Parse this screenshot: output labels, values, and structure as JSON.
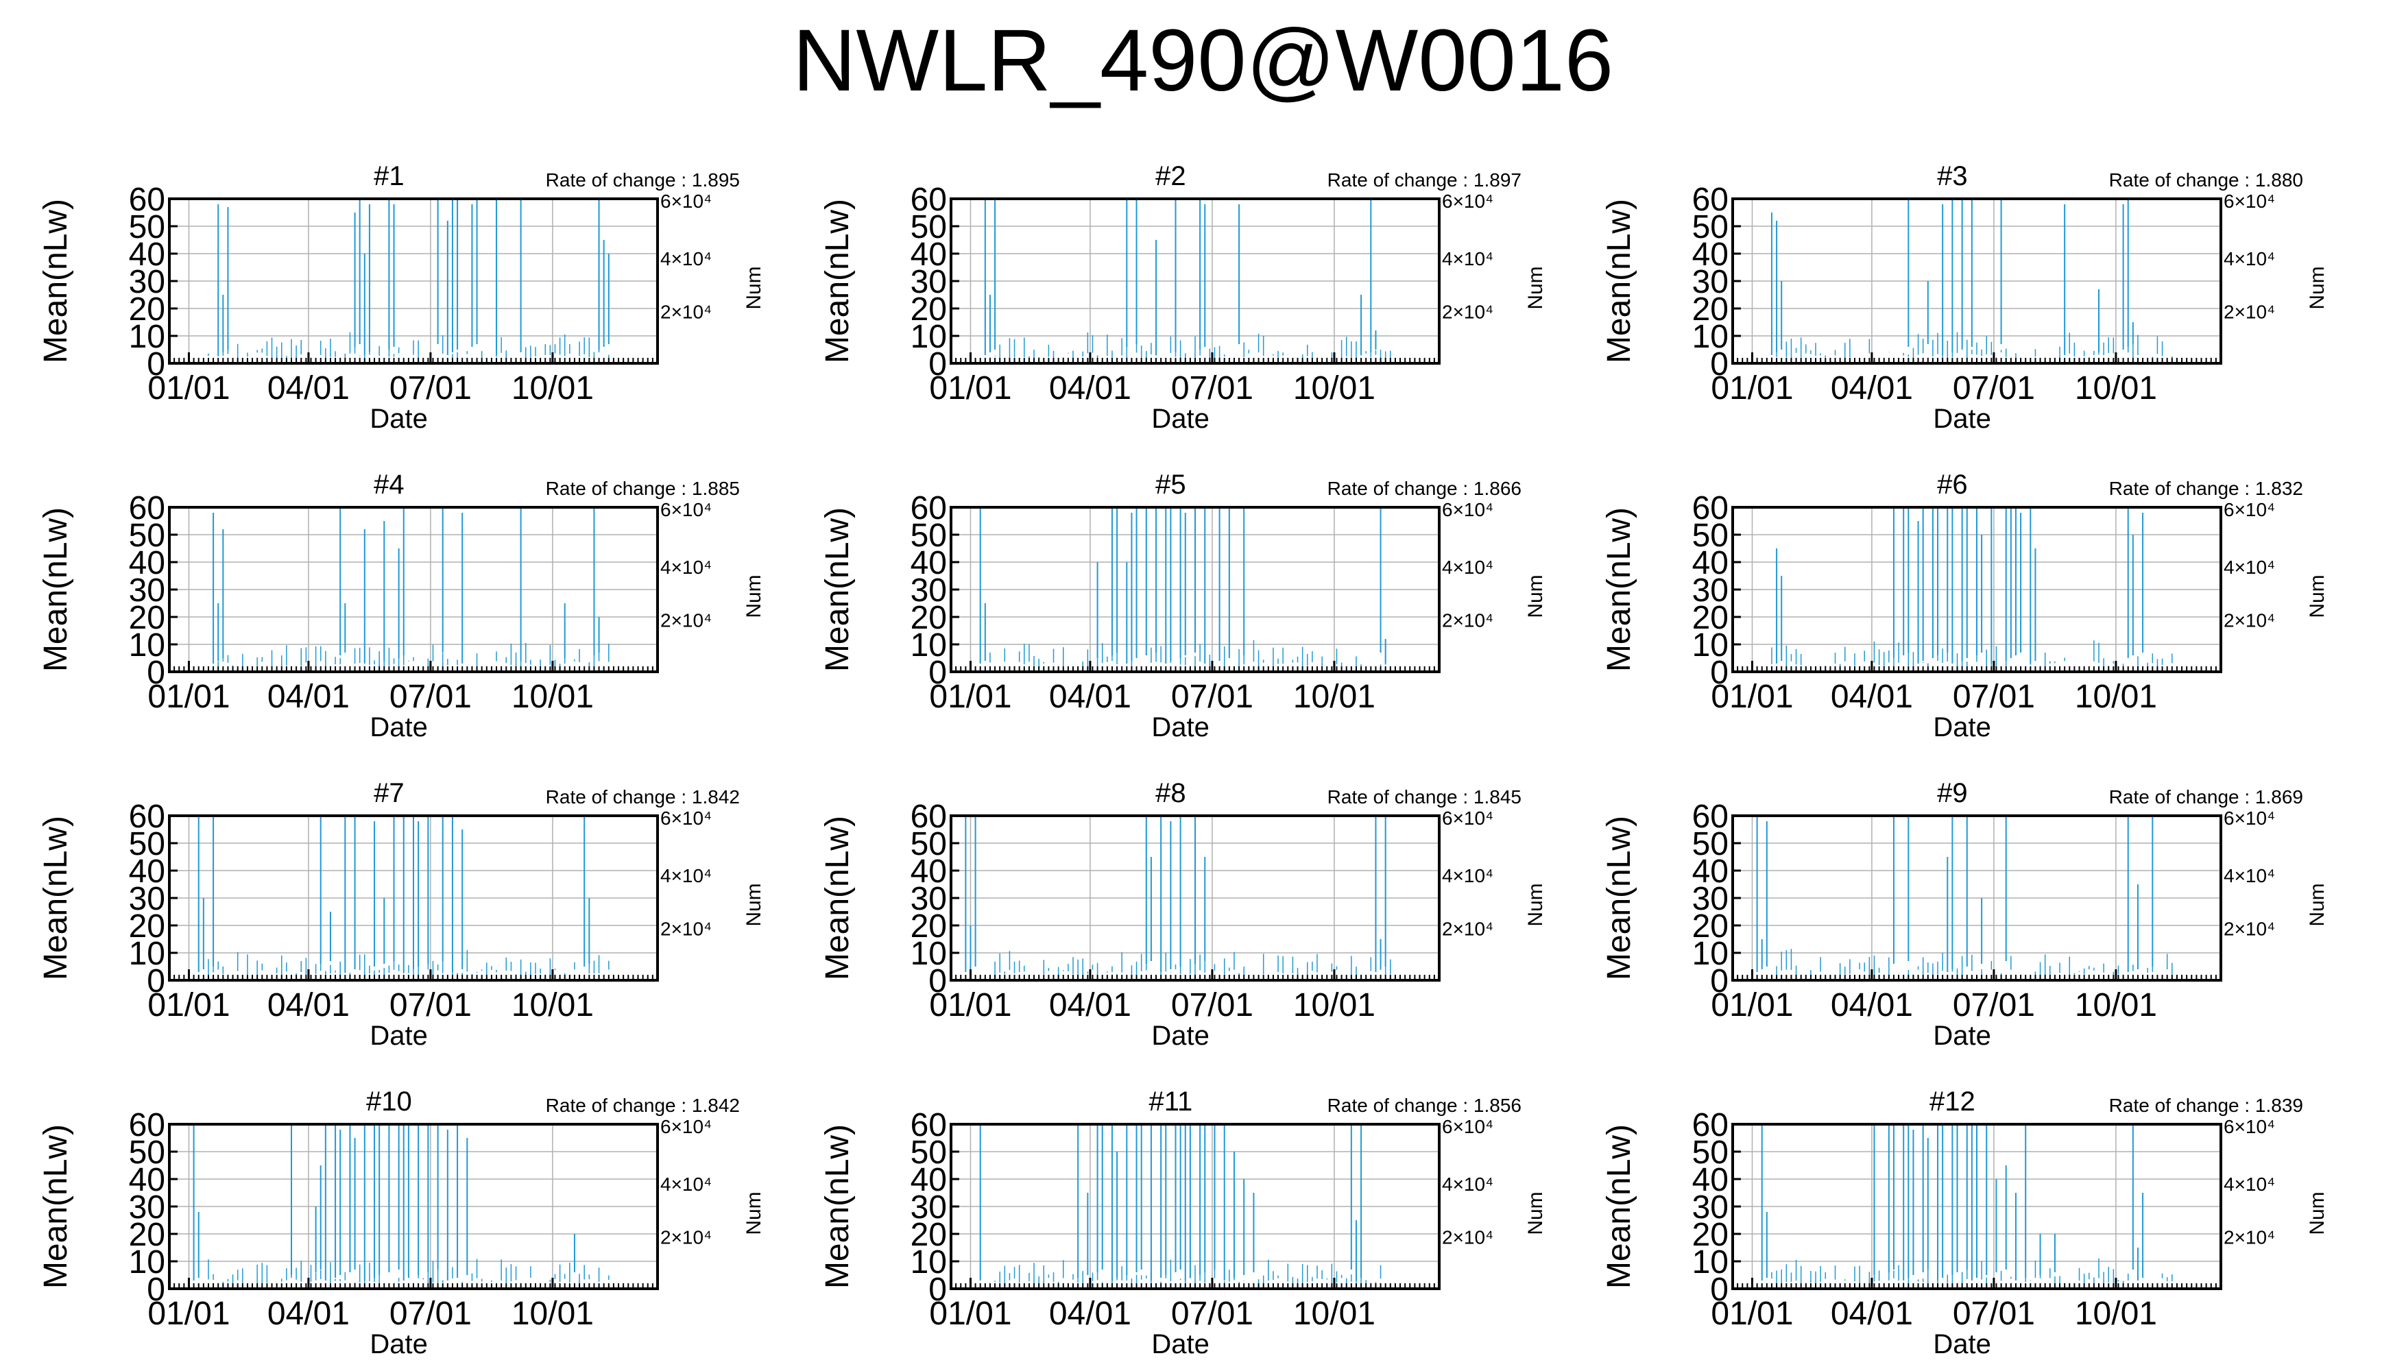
{
  "title": "NWLR_490@W0016",
  "colors": {
    "bar": "#1f9ad6",
    "grid": "#b0b0b0",
    "axis": "#000000"
  },
  "chart_data": [
    {
      "type": "bar",
      "panel": "#1",
      "rate_label": "Rate of change : 1.895",
      "xlabel": "Date",
      "ylabel": "Mean(nLw)",
      "y2label": "Num",
      "xticks": [
        "01/01",
        "04/01",
        "07/01",
        "10/01"
      ],
      "yticks": [
        "0",
        "10",
        "20",
        "30",
        "40",
        "50",
        "60"
      ],
      "y2ticks": [
        "2×10⁴",
        "4×10⁴",
        "6×10⁴"
      ],
      "ylim": [
        0,
        60
      ],
      "spikes": [
        [
          10,
          58
        ],
        [
          11,
          25
        ],
        [
          12,
          57
        ],
        [
          38,
          55
        ],
        [
          39,
          60
        ],
        [
          40,
          40
        ],
        [
          41,
          58
        ],
        [
          45,
          60
        ],
        [
          46,
          58
        ],
        [
          55,
          60
        ],
        [
          57,
          52
        ],
        [
          58,
          60
        ],
        [
          59,
          60
        ],
        [
          62,
          58
        ],
        [
          63,
          60
        ],
        [
          67,
          60
        ],
        [
          72,
          60
        ],
        [
          88,
          60
        ],
        [
          89,
          45
        ],
        [
          90,
          40
        ]
      ]
    },
    {
      "type": "bar",
      "panel": "#2",
      "rate_label": "Rate of change : 1.897",
      "xlabel": "Date",
      "ylabel": "Mean(nLw)",
      "y2label": "Num",
      "xticks": [
        "01/01",
        "04/01",
        "07/01",
        "10/01"
      ],
      "yticks": [
        "0",
        "10",
        "20",
        "30",
        "40",
        "50",
        "60"
      ],
      "y2ticks": [
        "2×10⁴",
        "4×10⁴",
        "6×10⁴"
      ],
      "ylim": [
        0,
        60
      ],
      "spikes": [
        [
          7,
          60
        ],
        [
          8,
          25
        ],
        [
          9,
          60
        ],
        [
          36,
          60
        ],
        [
          38,
          60
        ],
        [
          42,
          45
        ],
        [
          46,
          60
        ],
        [
          51,
          60
        ],
        [
          52,
          58
        ],
        [
          59,
          58
        ],
        [
          84,
          25
        ],
        [
          86,
          60
        ],
        [
          87,
          12
        ]
      ]
    },
    {
      "type": "bar",
      "panel": "#3",
      "rate_label": "Rate of change : 1.880",
      "xlabel": "Date",
      "ylabel": "Mean(nLw)",
      "y2label": "Num",
      "xticks": [
        "01/01",
        "04/01",
        "07/01",
        "10/01"
      ],
      "yticks": [
        "0",
        "10",
        "20",
        "30",
        "40",
        "50",
        "60"
      ],
      "y2ticks": [
        "2×10⁴",
        "4×10⁴",
        "6×10⁴"
      ],
      "ylim": [
        0,
        60
      ],
      "spikes": [
        [
          8,
          55
        ],
        [
          9,
          52
        ],
        [
          10,
          30
        ],
        [
          36,
          60
        ],
        [
          40,
          30
        ],
        [
          43,
          58
        ],
        [
          45,
          60
        ],
        [
          47,
          60
        ],
        [
          49,
          60
        ],
        [
          55,
          60
        ],
        [
          68,
          58
        ],
        [
          75,
          27
        ],
        [
          80,
          58
        ],
        [
          81,
          60
        ],
        [
          82,
          15
        ]
      ]
    },
    {
      "type": "bar",
      "panel": "#4",
      "rate_label": "Rate of change : 1.885",
      "xlabel": "Date",
      "ylabel": "Mean(nLw)",
      "y2label": "Num",
      "xticks": [
        "01/01",
        "04/01",
        "07/01",
        "10/01"
      ],
      "yticks": [
        "0",
        "10",
        "20",
        "30",
        "40",
        "50",
        "60"
      ],
      "y2ticks": [
        "2×10⁴",
        "4×10⁴",
        "6×10⁴"
      ],
      "ylim": [
        0,
        60
      ],
      "spikes": [
        [
          9,
          58
        ],
        [
          10,
          25
        ],
        [
          11,
          52
        ],
        [
          35,
          60
        ],
        [
          36,
          25
        ],
        [
          40,
          52
        ],
        [
          44,
          55
        ],
        [
          47,
          45
        ],
        [
          48,
          60
        ],
        [
          56,
          60
        ],
        [
          60,
          58
        ],
        [
          72,
          60
        ],
        [
          81,
          25
        ],
        [
          87,
          60
        ],
        [
          88,
          20
        ]
      ]
    },
    {
      "type": "bar",
      "panel": "#5",
      "rate_label": "Rate of change : 1.866",
      "xlabel": "Date",
      "ylabel": "Mean(nLw)",
      "y2label": "Num",
      "xticks": [
        "01/01",
        "04/01",
        "07/01",
        "10/01"
      ],
      "yticks": [
        "0",
        "10",
        "20",
        "30",
        "40",
        "50",
        "60"
      ],
      "y2ticks": [
        "2×10⁴",
        "4×10⁴",
        "6×10⁴"
      ],
      "ylim": [
        0,
        60
      ],
      "spikes": [
        [
          6,
          60
        ],
        [
          7,
          25
        ],
        [
          30,
          40
        ],
        [
          33,
          60
        ],
        [
          34,
          60
        ],
        [
          36,
          40
        ],
        [
          37,
          58
        ],
        [
          38,
          60
        ],
        [
          40,
          60
        ],
        [
          42,
          60
        ],
        [
          44,
          60
        ],
        [
          45,
          60
        ],
        [
          47,
          60
        ],
        [
          48,
          58
        ],
        [
          50,
          60
        ],
        [
          52,
          60
        ],
        [
          55,
          60
        ],
        [
          57,
          60
        ],
        [
          60,
          60
        ],
        [
          88,
          60
        ],
        [
          89,
          12
        ]
      ]
    },
    {
      "type": "bar",
      "panel": "#6",
      "rate_label": "Rate of change : 1.832",
      "xlabel": "Date",
      "ylabel": "Mean(nLw)",
      "y2label": "Num",
      "xticks": [
        "01/01",
        "04/01",
        "07/01",
        "10/01"
      ],
      "yticks": [
        "0",
        "10",
        "20",
        "30",
        "40",
        "50",
        "60"
      ],
      "y2ticks": [
        "2×10⁴",
        "4×10⁴",
        "6×10⁴"
      ],
      "ylim": [
        0,
        60
      ],
      "spikes": [
        [
          9,
          45
        ],
        [
          10,
          35
        ],
        [
          33,
          60
        ],
        [
          35,
          60
        ],
        [
          36,
          60
        ],
        [
          38,
          55
        ],
        [
          39,
          60
        ],
        [
          41,
          60
        ],
        [
          42,
          60
        ],
        [
          44,
          60
        ],
        [
          45,
          60
        ],
        [
          47,
          60
        ],
        [
          48,
          60
        ],
        [
          50,
          60
        ],
        [
          51,
          50
        ],
        [
          53,
          60
        ],
        [
          56,
          60
        ],
        [
          57,
          60
        ],
        [
          58,
          60
        ],
        [
          59,
          58
        ],
        [
          61,
          60
        ],
        [
          62,
          45
        ],
        [
          81,
          60
        ],
        [
          82,
          50
        ],
        [
          84,
          58
        ]
      ]
    },
    {
      "type": "bar",
      "panel": "#7",
      "rate_label": "Rate of change : 1.842",
      "xlabel": "Date",
      "ylabel": "Mean(nLw)",
      "y2label": "Num",
      "xticks": [
        "01/01",
        "04/01",
        "07/01",
        "10/01"
      ],
      "yticks": [
        "0",
        "10",
        "20",
        "30",
        "40",
        "50",
        "60"
      ],
      "y2ticks": [
        "2×10⁴",
        "4×10⁴",
        "6×10⁴"
      ],
      "ylim": [
        0,
        60
      ],
      "spikes": [
        [
          6,
          60
        ],
        [
          7,
          30
        ],
        [
          9,
          60
        ],
        [
          31,
          60
        ],
        [
          33,
          25
        ],
        [
          36,
          60
        ],
        [
          38,
          60
        ],
        [
          42,
          58
        ],
        [
          44,
          30
        ],
        [
          46,
          60
        ],
        [
          48,
          60
        ],
        [
          50,
          60
        ],
        [
          51,
          58
        ],
        [
          53,
          60
        ],
        [
          56,
          60
        ],
        [
          58,
          60
        ],
        [
          60,
          55
        ],
        [
          85,
          60
        ],
        [
          86,
          30
        ]
      ]
    },
    {
      "type": "bar",
      "panel": "#8",
      "rate_label": "Rate of change : 1.845",
      "xlabel": "Date",
      "ylabel": "Mean(nLw)",
      "y2label": "Num",
      "xticks": [
        "01/01",
        "04/01",
        "07/01",
        "10/01"
      ],
      "yticks": [
        "0",
        "10",
        "20",
        "30",
        "40",
        "50",
        "60"
      ],
      "y2ticks": [
        "2×10⁴",
        "4×10⁴",
        "6×10⁴"
      ],
      "ylim": [
        0,
        60
      ],
      "spikes": [
        [
          3,
          60
        ],
        [
          4,
          20
        ],
        [
          5,
          60
        ],
        [
          40,
          60
        ],
        [
          41,
          45
        ],
        [
          43,
          60
        ],
        [
          45,
          58
        ],
        [
          47,
          60
        ],
        [
          50,
          60
        ],
        [
          52,
          45
        ],
        [
          87,
          60
        ],
        [
          88,
          15
        ],
        [
          89,
          60
        ]
      ]
    },
    {
      "type": "bar",
      "panel": "#9",
      "rate_label": "Rate of change : 1.869",
      "xlabel": "Date",
      "ylabel": "Mean(nLw)",
      "y2label": "Num",
      "xticks": [
        "01/01",
        "04/01",
        "07/01",
        "10/01"
      ],
      "yticks": [
        "0",
        "10",
        "20",
        "30",
        "40",
        "50",
        "60"
      ],
      "y2ticks": [
        "2×10⁴",
        "4×10⁴",
        "6×10⁴"
      ],
      "ylim": [
        0,
        60
      ],
      "spikes": [
        [
          5,
          60
        ],
        [
          6,
          15
        ],
        [
          7,
          58
        ],
        [
          33,
          60
        ],
        [
          36,
          60
        ],
        [
          44,
          45
        ],
        [
          45,
          60
        ],
        [
          48,
          60
        ],
        [
          51,
          30
        ],
        [
          56,
          60
        ],
        [
          81,
          60
        ],
        [
          83,
          35
        ],
        [
          86,
          60
        ]
      ]
    },
    {
      "type": "bar",
      "panel": "#10",
      "rate_label": "Rate of change : 1.842",
      "xlabel": "Date",
      "ylabel": "Mean(nLw)",
      "y2label": "Num",
      "xticks": [
        "01/01",
        "04/01",
        "07/01",
        "10/01"
      ],
      "yticks": [
        "0",
        "10",
        "20",
        "30",
        "40",
        "50",
        "60"
      ],
      "y2ticks": [
        "2×10⁴",
        "4×10⁴",
        "6×10⁴"
      ],
      "ylim": [
        0,
        60
      ],
      "spikes": [
        [
          5,
          60
        ],
        [
          6,
          28
        ],
        [
          25,
          60
        ],
        [
          30,
          30
        ],
        [
          31,
          45
        ],
        [
          32,
          60
        ],
        [
          34,
          60
        ],
        [
          35,
          58
        ],
        [
          37,
          60
        ],
        [
          38,
          55
        ],
        [
          40,
          60
        ],
        [
          42,
          60
        ],
        [
          43,
          60
        ],
        [
          45,
          60
        ],
        [
          47,
          60
        ],
        [
          48,
          60
        ],
        [
          49,
          60
        ],
        [
          51,
          60
        ],
        [
          53,
          60
        ],
        [
          55,
          60
        ],
        [
          57,
          58
        ],
        [
          59,
          60
        ],
        [
          61,
          55
        ],
        [
          83,
          20
        ]
      ]
    },
    {
      "type": "bar",
      "panel": "#11",
      "rate_label": "Rate of change : 1.856",
      "xlabel": "Date",
      "ylabel": "Mean(nLw)",
      "y2label": "Num",
      "xticks": [
        "01/01",
        "04/01",
        "07/01",
        "10/01"
      ],
      "yticks": [
        "0",
        "10",
        "20",
        "30",
        "40",
        "50",
        "60"
      ],
      "y2ticks": [
        "2×10⁴",
        "4×10⁴",
        "6×10⁴"
      ],
      "ylim": [
        0,
        60
      ],
      "spikes": [
        [
          6,
          60
        ],
        [
          26,
          60
        ],
        [
          28,
          35
        ],
        [
          30,
          60
        ],
        [
          31,
          60
        ],
        [
          33,
          60
        ],
        [
          34,
          50
        ],
        [
          36,
          60
        ],
        [
          38,
          60
        ],
        [
          39,
          60
        ],
        [
          41,
          60
        ],
        [
          43,
          60
        ],
        [
          44,
          60
        ],
        [
          46,
          60
        ],
        [
          47,
          60
        ],
        [
          48,
          60
        ],
        [
          49,
          60
        ],
        [
          51,
          60
        ],
        [
          52,
          60
        ],
        [
          54,
          60
        ],
        [
          56,
          60
        ],
        [
          58,
          50
        ],
        [
          60,
          40
        ],
        [
          62,
          35
        ],
        [
          82,
          60
        ],
        [
          83,
          25
        ],
        [
          84,
          60
        ]
      ]
    },
    {
      "type": "bar",
      "panel": "#12",
      "rate_label": "Rate of change : 1.839",
      "xlabel": "Date",
      "ylabel": "Mean(nLw)",
      "y2label": "Num",
      "xticks": [
        "01/01",
        "04/01",
        "07/01",
        "10/01"
      ],
      "yticks": [
        "0",
        "10",
        "20",
        "30",
        "40",
        "50",
        "60"
      ],
      "y2ticks": [
        "2×10⁴",
        "4×10⁴",
        "6×10⁴"
      ],
      "ylim": [
        0,
        60
      ],
      "spikes": [
        [
          6,
          60
        ],
        [
          7,
          28
        ],
        [
          29,
          60
        ],
        [
          32,
          60
        ],
        [
          33,
          60
        ],
        [
          35,
          60
        ],
        [
          36,
          60
        ],
        [
          37,
          58
        ],
        [
          39,
          60
        ],
        [
          40,
          55
        ],
        [
          42,
          60
        ],
        [
          43,
          60
        ],
        [
          45,
          60
        ],
        [
          46,
          60
        ],
        [
          48,
          60
        ],
        [
          49,
          60
        ],
        [
          50,
          60
        ],
        [
          52,
          60
        ],
        [
          54,
          40
        ],
        [
          56,
          45
        ],
        [
          58,
          35
        ],
        [
          60,
          60
        ],
        [
          63,
          20
        ],
        [
          66,
          20
        ],
        [
          82,
          60
        ],
        [
          83,
          15
        ],
        [
          84,
          35
        ]
      ]
    }
  ]
}
